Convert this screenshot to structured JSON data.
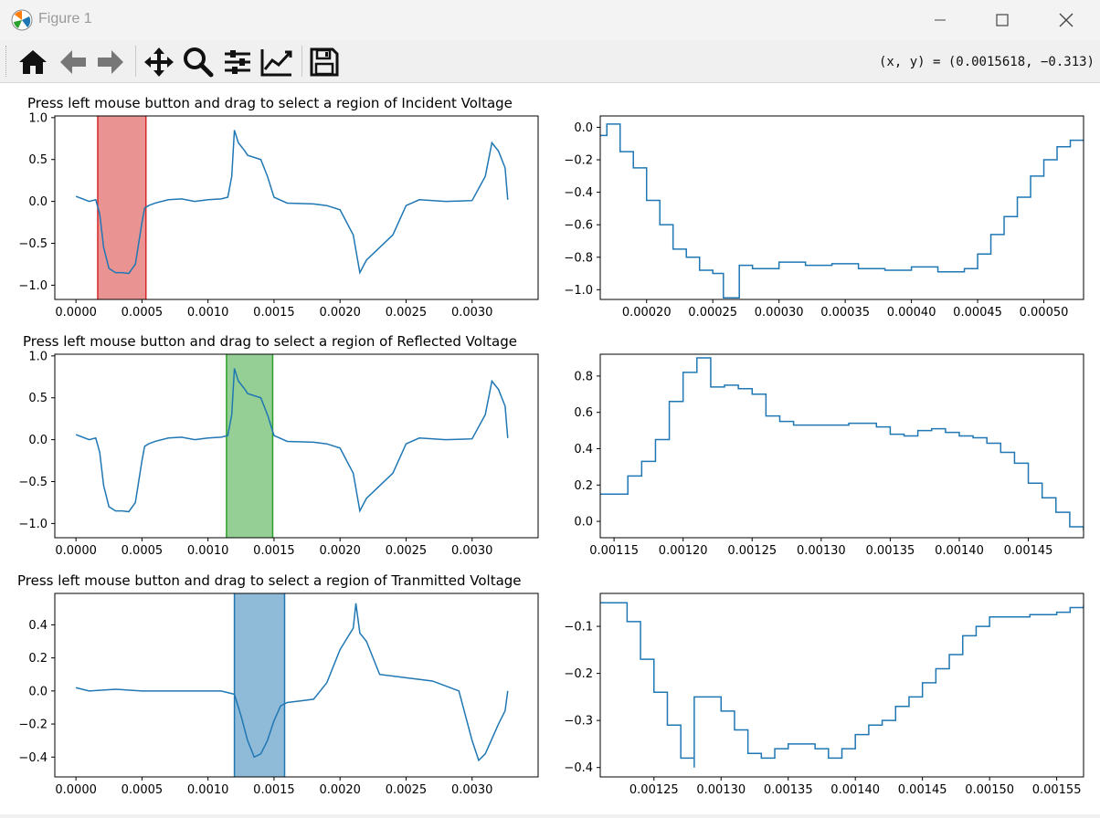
{
  "window": {
    "title": "Figure 1",
    "minimize_icon": "minimize-icon",
    "maximize_icon": "maximize-icon",
    "close_icon": "close-icon"
  },
  "toolbar": {
    "buttons": [
      {
        "name": "home-button",
        "icon": "home-icon",
        "tooltip": "Reset original view"
      },
      {
        "name": "back-button",
        "icon": "arrow-left-icon",
        "tooltip": "Back to previous view"
      },
      {
        "name": "forward-button",
        "icon": "arrow-right-icon",
        "tooltip": "Forward to next view"
      },
      {
        "name": "pan-button",
        "icon": "move-icon",
        "tooltip": "Pan axes"
      },
      {
        "name": "zoom-button",
        "icon": "magnifier-icon",
        "tooltip": "Zoom to rectangle"
      },
      {
        "name": "subplots-button",
        "icon": "sliders-icon",
        "tooltip": "Configure subplots"
      },
      {
        "name": "customize-button",
        "icon": "line-chart-icon",
        "tooltip": "Edit axis, curve and image parameters"
      },
      {
        "name": "save-button",
        "icon": "floppy-disk-icon",
        "tooltip": "Save the figure"
      }
    ],
    "coords": "(x, y) = (0.0015618, −0.313)"
  },
  "colors": {
    "line": "#1f77b4",
    "span_incident": "#d62728",
    "span_reflected": "#2ca02c",
    "span_transmitted": "#1f77b4"
  },
  "chart_data": [
    {
      "id": "incident-full",
      "type": "line",
      "title": "Press left mouse button and drag to select a region of Incident Voltage",
      "xlim": [
        -0.00016,
        0.0035
      ],
      "ylim": [
        -1.17,
        1.02
      ],
      "xticks": [
        0.0,
        0.0005,
        0.001,
        0.0015,
        0.002,
        0.0025,
        0.003
      ],
      "xtick_labels": [
        "0.0000",
        "0.0005",
        "0.0010",
        "0.0015",
        "0.0020",
        "0.0025",
        "0.0030"
      ],
      "yticks": [
        -1.0,
        -0.5,
        0.0,
        0.5,
        1.0
      ],
      "ytick_labels": [
        "−1.0",
        "−0.5",
        "0.0",
        "0.5",
        "1.0"
      ],
      "points": [
        [
          0,
          0.06
        ],
        [
          0.0001,
          0.0
        ],
        [
          0.00015,
          0.02
        ],
        [
          0.00018,
          -0.15
        ],
        [
          0.00021,
          -0.55
        ],
        [
          0.00025,
          -0.8
        ],
        [
          0.0003,
          -0.85
        ],
        [
          0.00035,
          -0.85
        ],
        [
          0.0004,
          -0.86
        ],
        [
          0.00045,
          -0.75
        ],
        [
          0.0005,
          -0.25
        ],
        [
          0.00052,
          -0.08
        ],
        [
          0.00055,
          -0.05
        ],
        [
          0.0006,
          -0.02
        ],
        [
          0.0007,
          0.02
        ],
        [
          0.0008,
          0.03
        ],
        [
          0.0009,
          0.0
        ],
        [
          0.001,
          0.02
        ],
        [
          0.0011,
          0.03
        ],
        [
          0.00115,
          0.05
        ],
        [
          0.00118,
          0.3
        ],
        [
          0.0012,
          0.85
        ],
        [
          0.00123,
          0.7
        ],
        [
          0.00128,
          0.6
        ],
        [
          0.0013,
          0.55
        ],
        [
          0.0014,
          0.5
        ],
        [
          0.00145,
          0.3
        ],
        [
          0.0015,
          0.05
        ],
        [
          0.0016,
          -0.02
        ],
        [
          0.0018,
          -0.03
        ],
        [
          0.0019,
          -0.05
        ],
        [
          0.002,
          -0.1
        ],
        [
          0.0021,
          -0.4
        ],
        [
          0.00215,
          -0.85
        ],
        [
          0.0022,
          -0.7
        ],
        [
          0.0023,
          -0.55
        ],
        [
          0.0024,
          -0.4
        ],
        [
          0.0025,
          -0.05
        ],
        [
          0.0026,
          0.02
        ],
        [
          0.0028,
          0.0
        ],
        [
          0.003,
          0.01
        ],
        [
          0.0031,
          0.3
        ],
        [
          0.00315,
          0.7
        ],
        [
          0.0032,
          0.6
        ],
        [
          0.00325,
          0.4
        ],
        [
          0.00327,
          0.02
        ]
      ],
      "span": [
        0.000165,
        0.00053
      ],
      "span_color": "span_incident"
    },
    {
      "id": "incident-zoom",
      "type": "line",
      "title": "",
      "xlim": [
        0.000165,
        0.00053
      ],
      "ylim": [
        -1.06,
        0.07
      ],
      "xticks": [
        0.0002,
        0.00025,
        0.0003,
        0.00035,
        0.0004,
        0.00045,
        0.0005
      ],
      "xtick_labels": [
        "0.00020",
        "0.00025",
        "0.00030",
        "0.00035",
        "0.00040",
        "0.00045",
        "0.00050"
      ],
      "yticks": [
        -1.0,
        -0.8,
        -0.6,
        -0.4,
        -0.2,
        0.0
      ],
      "ytick_labels": [
        "−1.0",
        "−0.8",
        "−0.6",
        "−0.4",
        "−0.2",
        "0.0"
      ],
      "points": [
        [
          0.000165,
          -0.05
        ],
        [
          0.00017,
          0.02
        ],
        [
          0.00018,
          -0.15
        ],
        [
          0.00019,
          -0.25
        ],
        [
          0.0002,
          -0.45
        ],
        [
          0.00021,
          -0.6
        ],
        [
          0.00022,
          -0.75
        ],
        [
          0.00023,
          -0.8
        ],
        [
          0.00024,
          -0.88
        ],
        [
          0.00025,
          -0.9
        ],
        [
          0.000258,
          -1.05
        ],
        [
          0.00027,
          -0.85
        ],
        [
          0.00028,
          -0.87
        ],
        [
          0.0003,
          -0.83
        ],
        [
          0.00032,
          -0.85
        ],
        [
          0.00034,
          -0.84
        ],
        [
          0.00036,
          -0.87
        ],
        [
          0.00038,
          -0.88
        ],
        [
          0.0004,
          -0.86
        ],
        [
          0.00042,
          -0.89
        ],
        [
          0.00044,
          -0.87
        ],
        [
          0.00045,
          -0.78
        ],
        [
          0.00046,
          -0.66
        ],
        [
          0.00047,
          -0.55
        ],
        [
          0.00048,
          -0.43
        ],
        [
          0.00049,
          -0.3
        ],
        [
          0.0005,
          -0.2
        ],
        [
          0.00051,
          -0.12
        ],
        [
          0.00052,
          -0.08
        ],
        [
          0.00053,
          -0.08
        ]
      ]
    },
    {
      "id": "reflected-full",
      "type": "line",
      "title": "Press left mouse button and drag to select a region of Reflected Voltage",
      "xlim": [
        -0.00016,
        0.0035
      ],
      "ylim": [
        -1.17,
        1.02
      ],
      "xticks": [
        0.0,
        0.0005,
        0.001,
        0.0015,
        0.002,
        0.0025,
        0.003
      ],
      "xtick_labels": [
        "0.0000",
        "0.0005",
        "0.0010",
        "0.0015",
        "0.0020",
        "0.0025",
        "0.0030"
      ],
      "yticks": [
        -1.0,
        -0.5,
        0.0,
        0.5,
        1.0
      ],
      "ytick_labels": [
        "−1.0",
        "−0.5",
        "0.0",
        "0.5",
        "1.0"
      ],
      "points": [
        [
          0,
          0.06
        ],
        [
          0.0001,
          0.0
        ],
        [
          0.00015,
          0.02
        ],
        [
          0.00018,
          -0.15
        ],
        [
          0.00021,
          -0.55
        ],
        [
          0.00025,
          -0.8
        ],
        [
          0.0003,
          -0.85
        ],
        [
          0.00035,
          -0.85
        ],
        [
          0.0004,
          -0.86
        ],
        [
          0.00045,
          -0.75
        ],
        [
          0.0005,
          -0.25
        ],
        [
          0.00052,
          -0.08
        ],
        [
          0.00055,
          -0.05
        ],
        [
          0.0006,
          -0.02
        ],
        [
          0.0007,
          0.02
        ],
        [
          0.0008,
          0.03
        ],
        [
          0.0009,
          0.0
        ],
        [
          0.001,
          0.02
        ],
        [
          0.0011,
          0.03
        ],
        [
          0.00115,
          0.05
        ],
        [
          0.00118,
          0.3
        ],
        [
          0.0012,
          0.85
        ],
        [
          0.00123,
          0.7
        ],
        [
          0.00128,
          0.6
        ],
        [
          0.0013,
          0.55
        ],
        [
          0.0014,
          0.5
        ],
        [
          0.00145,
          0.3
        ],
        [
          0.0015,
          0.05
        ],
        [
          0.0016,
          -0.02
        ],
        [
          0.0018,
          -0.03
        ],
        [
          0.0019,
          -0.05
        ],
        [
          0.002,
          -0.1
        ],
        [
          0.0021,
          -0.4
        ],
        [
          0.00215,
          -0.85
        ],
        [
          0.0022,
          -0.7
        ],
        [
          0.0023,
          -0.55
        ],
        [
          0.0024,
          -0.4
        ],
        [
          0.0025,
          -0.05
        ],
        [
          0.0026,
          0.02
        ],
        [
          0.0028,
          0.0
        ],
        [
          0.003,
          0.01
        ],
        [
          0.0031,
          0.3
        ],
        [
          0.00315,
          0.7
        ],
        [
          0.0032,
          0.6
        ],
        [
          0.00325,
          0.4
        ],
        [
          0.00327,
          0.02
        ]
      ],
      "span": [
        0.00114,
        0.00149
      ],
      "span_color": "span_reflected"
    },
    {
      "id": "reflected-zoom",
      "type": "line",
      "title": "",
      "xlim": [
        0.00114,
        0.00149
      ],
      "ylim": [
        -0.09,
        0.92
      ],
      "xticks": [
        0.00115,
        0.0012,
        0.00125,
        0.0013,
        0.00135,
        0.0014,
        0.00145
      ],
      "xtick_labels": [
        "0.00115",
        "0.00120",
        "0.00125",
        "0.00130",
        "0.00135",
        "0.00140",
        "0.00145"
      ],
      "yticks": [
        0.0,
        0.2,
        0.4,
        0.6,
        0.8
      ],
      "ytick_labels": [
        "0.0",
        "0.2",
        "0.4",
        "0.6",
        "0.8"
      ],
      "points": [
        [
          0.00114,
          0.15
        ],
        [
          0.00115,
          0.15
        ],
        [
          0.00116,
          0.25
        ],
        [
          0.00117,
          0.33
        ],
        [
          0.00118,
          0.45
        ],
        [
          0.00119,
          0.66
        ],
        [
          0.0012,
          0.82
        ],
        [
          0.00121,
          0.9
        ],
        [
          0.00122,
          0.74
        ],
        [
          0.00123,
          0.75
        ],
        [
          0.00124,
          0.73
        ],
        [
          0.00125,
          0.7
        ],
        [
          0.00126,
          0.58
        ],
        [
          0.00127,
          0.55
        ],
        [
          0.00128,
          0.53
        ],
        [
          0.0013,
          0.53
        ],
        [
          0.00132,
          0.54
        ],
        [
          0.00134,
          0.52
        ],
        [
          0.00135,
          0.48
        ],
        [
          0.00136,
          0.47
        ],
        [
          0.00137,
          0.5
        ],
        [
          0.00138,
          0.51
        ],
        [
          0.00139,
          0.49
        ],
        [
          0.0014,
          0.47
        ],
        [
          0.00141,
          0.46
        ],
        [
          0.00142,
          0.43
        ],
        [
          0.00143,
          0.38
        ],
        [
          0.00144,
          0.32
        ],
        [
          0.00145,
          0.21
        ],
        [
          0.00146,
          0.13
        ],
        [
          0.00147,
          0.05
        ],
        [
          0.00148,
          -0.03
        ],
        [
          0.00149,
          -0.05
        ]
      ]
    },
    {
      "id": "transmitted-full",
      "type": "line",
      "title": "Press left mouse button and drag to select a region of Tranmitted Voltage",
      "xlim": [
        -0.00016,
        0.0035
      ],
      "ylim": [
        -0.52,
        0.59
      ],
      "xticks": [
        0.0,
        0.0005,
        0.001,
        0.0015,
        0.002,
        0.0025,
        0.003
      ],
      "xtick_labels": [
        "0.0000",
        "0.0005",
        "0.0010",
        "0.0015",
        "0.0020",
        "0.0025",
        "0.0030"
      ],
      "yticks": [
        -0.4,
        -0.2,
        0.0,
        0.2,
        0.4
      ],
      "ytick_labels": [
        "−0.4",
        "−0.2",
        "0.0",
        "0.2",
        "0.4"
      ],
      "points": [
        [
          0,
          0.02
        ],
        [
          0.0001,
          0.0
        ],
        [
          0.0003,
          0.01
        ],
        [
          0.0005,
          0.0
        ],
        [
          0.0007,
          0.0
        ],
        [
          0.0009,
          0.0
        ],
        [
          0.0011,
          0.0
        ],
        [
          0.0012,
          -0.02
        ],
        [
          0.00125,
          -0.15
        ],
        [
          0.0013,
          -0.3
        ],
        [
          0.00135,
          -0.4
        ],
        [
          0.0014,
          -0.38
        ],
        [
          0.00145,
          -0.3
        ],
        [
          0.0015,
          -0.18
        ],
        [
          0.00155,
          -0.09
        ],
        [
          0.0016,
          -0.07
        ],
        [
          0.0017,
          -0.06
        ],
        [
          0.0018,
          -0.05
        ],
        [
          0.0019,
          0.05
        ],
        [
          0.002,
          0.25
        ],
        [
          0.0021,
          0.38
        ],
        [
          0.00212,
          0.53
        ],
        [
          0.00215,
          0.35
        ],
        [
          0.0022,
          0.3
        ],
        [
          0.0023,
          0.1
        ],
        [
          0.0025,
          0.08
        ],
        [
          0.0027,
          0.06
        ],
        [
          0.0029,
          0.0
        ],
        [
          0.003,
          -0.3
        ],
        [
          0.00305,
          -0.42
        ],
        [
          0.0031,
          -0.38
        ],
        [
          0.0032,
          -0.2
        ],
        [
          0.00325,
          -0.12
        ],
        [
          0.00327,
          0.0
        ]
      ],
      "span": [
        0.0012,
        0.00158
      ],
      "span_color": "span_transmitted"
    },
    {
      "id": "transmitted-zoom",
      "type": "line",
      "title": "",
      "xlim": [
        0.00121,
        0.00157
      ],
      "ylim": [
        -0.42,
        -0.03
      ],
      "xticks": [
        0.00125,
        0.0013,
        0.00135,
        0.0014,
        0.00145,
        0.0015,
        0.00155
      ],
      "xtick_labels": [
        "0.00125",
        "0.00130",
        "0.00135",
        "0.00140",
        "0.00145",
        "0.00150",
        "0.00155"
      ],
      "yticks": [
        -0.4,
        -0.3,
        -0.2,
        -0.1
      ],
      "ytick_labels": [
        "−0.4",
        "−0.3",
        "−0.2",
        "−0.1"
      ],
      "points": [
        [
          0.00121,
          -0.05
        ],
        [
          0.00122,
          -0.05
        ],
        [
          0.00123,
          -0.09
        ],
        [
          0.00124,
          -0.17
        ],
        [
          0.00125,
          -0.24
        ],
        [
          0.00126,
          -0.31
        ],
        [
          0.00127,
          -0.38
        ],
        [
          0.00128,
          -0.4
        ],
        [
          0.00128,
          -0.25
        ],
        [
          0.00129,
          -0.25
        ],
        [
          0.0013,
          -0.28
        ],
        [
          0.00131,
          -0.32
        ],
        [
          0.00132,
          -0.37
        ],
        [
          0.00133,
          -0.38
        ],
        [
          0.00134,
          -0.36
        ],
        [
          0.00135,
          -0.35
        ],
        [
          0.00136,
          -0.35
        ],
        [
          0.00137,
          -0.36
        ],
        [
          0.00138,
          -0.38
        ],
        [
          0.00139,
          -0.36
        ],
        [
          0.0014,
          -0.33
        ],
        [
          0.00141,
          -0.31
        ],
        [
          0.00142,
          -0.3
        ],
        [
          0.00143,
          -0.27
        ],
        [
          0.00144,
          -0.25
        ],
        [
          0.00145,
          -0.22
        ],
        [
          0.00146,
          -0.19
        ],
        [
          0.00147,
          -0.16
        ],
        [
          0.00148,
          -0.12
        ],
        [
          0.00149,
          -0.1
        ],
        [
          0.0015,
          -0.08
        ],
        [
          0.00151,
          -0.08
        ],
        [
          0.00152,
          -0.08
        ],
        [
          0.00153,
          -0.075
        ],
        [
          0.00154,
          -0.075
        ],
        [
          0.00155,
          -0.07
        ],
        [
          0.00156,
          -0.06
        ],
        [
          0.00157,
          -0.055
        ]
      ]
    }
  ]
}
